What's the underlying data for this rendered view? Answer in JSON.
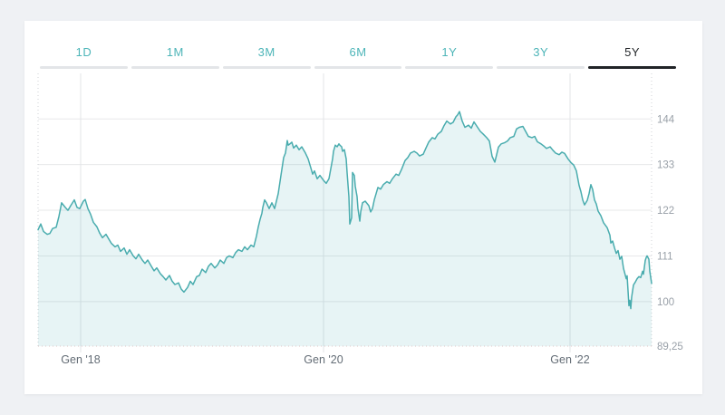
{
  "page": {
    "background": "#eff1f4",
    "card_background": "#ffffff"
  },
  "tabs": {
    "items": [
      {
        "label": "1D",
        "active": false
      },
      {
        "label": "1M",
        "active": false
      },
      {
        "label": "3M",
        "active": false
      },
      {
        "label": "6M",
        "active": false
      },
      {
        "label": "1Y",
        "active": false
      },
      {
        "label": "3Y",
        "active": false
      },
      {
        "label": "5Y",
        "active": true
      }
    ],
    "inactive_text_color": "#4db5b8",
    "active_text_color": "#25282b",
    "inactive_bar_color": "#e3e5e8",
    "active_bar_color": "#212427"
  },
  "chart_data": {
    "type": "area",
    "title": "",
    "xlabel": "",
    "ylabel": "",
    "grid": true,
    "legend": false,
    "ylim": [
      89.25,
      154
    ],
    "line_color": "#49acae",
    "fill_color": "rgba(73,172,174,0.13)",
    "grid_color_h": "#e7e8ea",
    "grid_color_v": "#e3e4e7",
    "edge_dotted_color": "#cfd2d6",
    "min_line_color": "#dcc6c6",
    "x_ticks": [
      {
        "label": "Gen '18",
        "x": 89
      },
      {
        "label": "Gen '20",
        "x": 357
      },
      {
        "label": "Gen '22",
        "x": 629
      }
    ],
    "y_ticks": [
      {
        "label": "144",
        "value": 144
      },
      {
        "label": "133",
        "value": 133
      },
      {
        "label": "122",
        "value": 122
      },
      {
        "label": "111",
        "value": 111
      },
      {
        "label": "100",
        "value": 100
      }
    ],
    "y_min": {
      "label": "89,25",
      "value": 89.25
    },
    "series": [
      {
        "name": "main",
        "points": [
          [
            42,
            117.3
          ],
          [
            45,
            118.7
          ],
          [
            48,
            116.9
          ],
          [
            52,
            116.2
          ],
          [
            55,
            116.4
          ],
          [
            58,
            117.6
          ],
          [
            62,
            117.9
          ],
          [
            65,
            120.5
          ],
          [
            68,
            123.8
          ],
          [
            72,
            122.7
          ],
          [
            75,
            122.0
          ],
          [
            78,
            123.1
          ],
          [
            82,
            124.5
          ],
          [
            85,
            122.7
          ],
          [
            88,
            122.4
          ],
          [
            92,
            124.2
          ],
          [
            94,
            124.6
          ],
          [
            97,
            122.4
          ],
          [
            100,
            121.0
          ],
          [
            103,
            119.1
          ],
          [
            107,
            118.0
          ],
          [
            110,
            116.5
          ],
          [
            113,
            115.4
          ],
          [
            117,
            116.2
          ],
          [
            120,
            115.1
          ],
          [
            123,
            114.0
          ],
          [
            127,
            113.2
          ],
          [
            130,
            113.6
          ],
          [
            133,
            112.1
          ],
          [
            137,
            112.9
          ],
          [
            140,
            111.4
          ],
          [
            143,
            112.5
          ],
          [
            147,
            111.0
          ],
          [
            150,
            110.3
          ],
          [
            153,
            111.4
          ],
          [
            157,
            110.0
          ],
          [
            160,
            109.2
          ],
          [
            163,
            110.0
          ],
          [
            167,
            108.5
          ],
          [
            170,
            107.4
          ],
          [
            173,
            108.1
          ],
          [
            177,
            106.7
          ],
          [
            180,
            106.0
          ],
          [
            183,
            105.2
          ],
          [
            187,
            106.3
          ],
          [
            190,
            104.9
          ],
          [
            193,
            104.1
          ],
          [
            197,
            104.5
          ],
          [
            200,
            103.0
          ],
          [
            203,
            102.3
          ],
          [
            207,
            103.4
          ],
          [
            210,
            104.9
          ],
          [
            213,
            104.1
          ],
          [
            217,
            106.0
          ],
          [
            220,
            106.3
          ],
          [
            223,
            107.8
          ],
          [
            227,
            107.0
          ],
          [
            230,
            108.5
          ],
          [
            233,
            109.2
          ],
          [
            237,
            108.1
          ],
          [
            240,
            108.8
          ],
          [
            243,
            110.0
          ],
          [
            247,
            109.2
          ],
          [
            250,
            110.6
          ],
          [
            253,
            111.0
          ],
          [
            257,
            110.6
          ],
          [
            260,
            111.8
          ],
          [
            263,
            112.5
          ],
          [
            267,
            112.1
          ],
          [
            270,
            113.2
          ],
          [
            273,
            112.5
          ],
          [
            277,
            113.6
          ],
          [
            280,
            113.2
          ],
          [
            283,
            115.8
          ],
          [
            285,
            118.0
          ],
          [
            287,
            119.8
          ],
          [
            289,
            121.3
          ],
          [
            290,
            122.7
          ],
          [
            292,
            124.5
          ],
          [
            294,
            123.8
          ],
          [
            297,
            122.4
          ],
          [
            300,
            123.8
          ],
          [
            303,
            122.4
          ],
          [
            307,
            126.0
          ],
          [
            310,
            130.4
          ],
          [
            313,
            134.7
          ],
          [
            315,
            135.8
          ],
          [
            317,
            138.8
          ],
          [
            318,
            137.7
          ],
          [
            320,
            138.0
          ],
          [
            322,
            138.4
          ],
          [
            324,
            137.0
          ],
          [
            327,
            137.7
          ],
          [
            330,
            136.6
          ],
          [
            333,
            137.3
          ],
          [
            337,
            135.8
          ],
          [
            340,
            134.4
          ],
          [
            343,
            132.2
          ],
          [
            345,
            130.7
          ],
          [
            347,
            131.5
          ],
          [
            350,
            129.6
          ],
          [
            353,
            130.4
          ],
          [
            357,
            129.2
          ],
          [
            360,
            128.5
          ],
          [
            363,
            129.6
          ],
          [
            367,
            134.4
          ],
          [
            368,
            136.2
          ],
          [
            370,
            137.7
          ],
          [
            372,
            137.3
          ],
          [
            374,
            138.0
          ],
          [
            375,
            137.7
          ],
          [
            377,
            137.3
          ],
          [
            378,
            136.2
          ],
          [
            380,
            136.6
          ],
          [
            382,
            134.4
          ],
          [
            383,
            131.1
          ],
          [
            385,
            125.3
          ],
          [
            386,
            118.7
          ],
          [
            388,
            120.2
          ],
          [
            389,
            131.1
          ],
          [
            391,
            130.4
          ],
          [
            392,
            127.8
          ],
          [
            394,
            125.3
          ],
          [
            395,
            122.4
          ],
          [
            397,
            119.4
          ],
          [
            398,
            121.6
          ],
          [
            400,
            123.8
          ],
          [
            403,
            124.2
          ],
          [
            407,
            123.1
          ],
          [
            409,
            121.6
          ],
          [
            411,
            122.4
          ],
          [
            413,
            124.5
          ],
          [
            417,
            127.5
          ],
          [
            420,
            127.1
          ],
          [
            423,
            128.2
          ],
          [
            427,
            128.9
          ],
          [
            430,
            128.5
          ],
          [
            433,
            129.6
          ],
          [
            437,
            130.7
          ],
          [
            440,
            130.4
          ],
          [
            443,
            131.8
          ],
          [
            447,
            134.0
          ],
          [
            450,
            134.7
          ],
          [
            453,
            135.8
          ],
          [
            457,
            136.2
          ],
          [
            460,
            135.8
          ],
          [
            463,
            135.1
          ],
          [
            467,
            135.5
          ],
          [
            470,
            137.0
          ],
          [
            473,
            138.4
          ],
          [
            477,
            139.5
          ],
          [
            480,
            139.2
          ],
          [
            483,
            140.3
          ],
          [
            487,
            141.0
          ],
          [
            490,
            142.4
          ],
          [
            493,
            143.5
          ],
          [
            497,
            142.8
          ],
          [
            500,
            143.2
          ],
          [
            503,
            144.5
          ],
          [
            505,
            145.0
          ],
          [
            507,
            145.8
          ],
          [
            510,
            143.5
          ],
          [
            513,
            142.0
          ],
          [
            517,
            142.5
          ],
          [
            520,
            141.8
          ],
          [
            523,
            143.3
          ],
          [
            527,
            142.0
          ],
          [
            530,
            141.0
          ],
          [
            533,
            140.4
          ],
          [
            537,
            139.5
          ],
          [
            540,
            138.7
          ],
          [
            543,
            135.0
          ],
          [
            546,
            133.6
          ],
          [
            550,
            137.2
          ],
          [
            553,
            138.0
          ],
          [
            557,
            138.3
          ],
          [
            560,
            138.7
          ],
          [
            563,
            139.5
          ],
          [
            567,
            139.8
          ],
          [
            570,
            141.6
          ],
          [
            573,
            142.0
          ],
          [
            577,
            142.2
          ],
          [
            580,
            141.0
          ],
          [
            583,
            139.8
          ],
          [
            587,
            139.5
          ],
          [
            590,
            139.8
          ],
          [
            593,
            138.5
          ],
          [
            597,
            138.0
          ],
          [
            600,
            137.5
          ],
          [
            603,
            136.9
          ],
          [
            607,
            137.3
          ],
          [
            610,
            136.5
          ],
          [
            613,
            135.8
          ],
          [
            617,
            135.4
          ],
          [
            620,
            136.0
          ],
          [
            623,
            135.7
          ],
          [
            627,
            134.3
          ],
          [
            630,
            133.5
          ],
          [
            633,
            132.9
          ],
          [
            636,
            131.5
          ],
          [
            639,
            128.0
          ],
          [
            641,
            126.5
          ],
          [
            643,
            124.5
          ],
          [
            645,
            123.3
          ],
          [
            648,
            124.4
          ],
          [
            650,
            126.0
          ],
          [
            652,
            128.2
          ],
          [
            654,
            127.0
          ],
          [
            656,
            124.5
          ],
          [
            658,
            123.5
          ],
          [
            660,
            121.8
          ],
          [
            663,
            120.7
          ],
          [
            666,
            119.0
          ],
          [
            670,
            117.8
          ],
          [
            673,
            116.0
          ],
          [
            674,
            114.1
          ],
          [
            676,
            114.6
          ],
          [
            678,
            113.0
          ],
          [
            680,
            111.6
          ],
          [
            682,
            112.3
          ],
          [
            684,
            110.2
          ],
          [
            686,
            110.9
          ],
          [
            688,
            108.0
          ],
          [
            691,
            105.5
          ],
          [
            692,
            106.2
          ],
          [
            694,
            99.0
          ],
          [
            695,
            100.3
          ],
          [
            696,
            98.3
          ],
          [
            697,
            101.1
          ],
          [
            699,
            104.0
          ],
          [
            701,
            104.7
          ],
          [
            703,
            105.5
          ],
          [
            705,
            106.0
          ],
          [
            707,
            105.8
          ],
          [
            709,
            107.3
          ],
          [
            710,
            106.6
          ],
          [
            712,
            109.9
          ],
          [
            713,
            110.6
          ],
          [
            714,
            111.0
          ],
          [
            716,
            110.2
          ],
          [
            717,
            107.3
          ],
          [
            719,
            104.4
          ]
        ]
      }
    ]
  }
}
